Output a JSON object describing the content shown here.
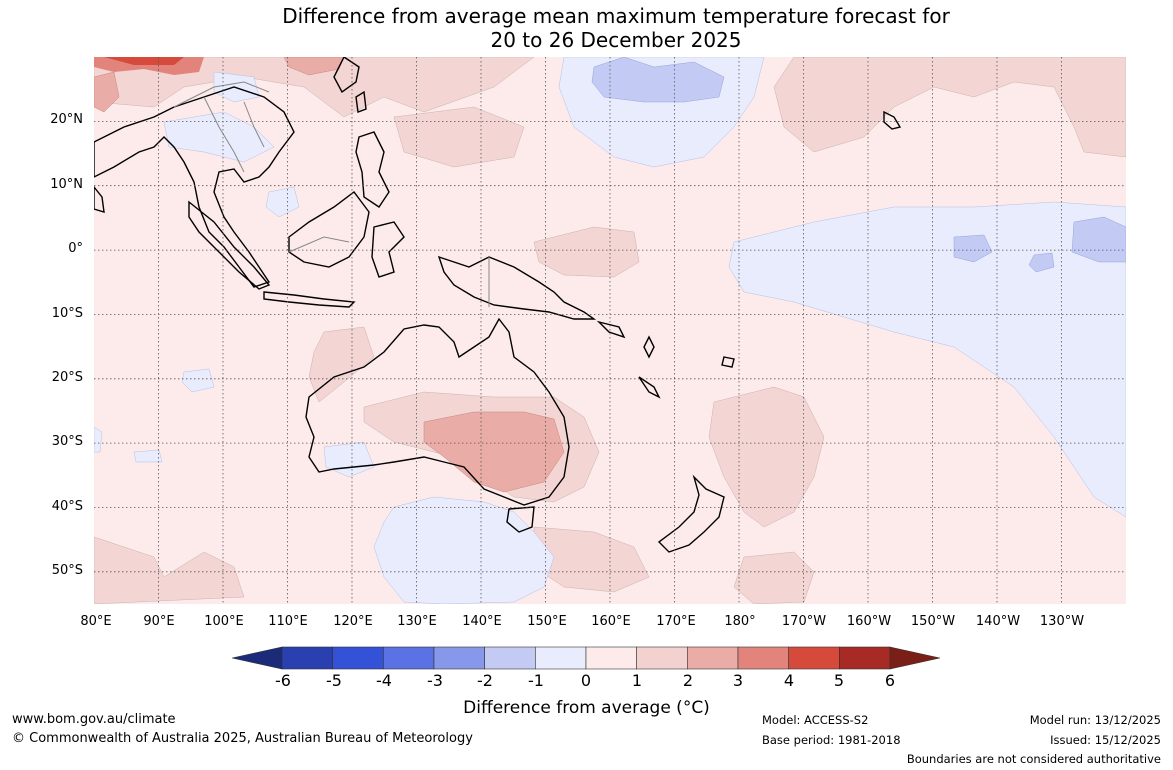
{
  "title": {
    "line1": "Difference from average mean maximum temperature forecast for",
    "line2": "20 to 26 December 2025"
  },
  "map": {
    "latitude_labels": [
      "20°N",
      "10°N",
      "0°",
      "10°S",
      "20°S",
      "30°S",
      "40°S",
      "50°S"
    ],
    "longitude_labels": [
      "80°E",
      "90°E",
      "100°E",
      "110°E",
      "120°E",
      "130°E",
      "140°E",
      "150°E",
      "160°E",
      "170°E",
      "180°",
      "170°W",
      "160°W",
      "150°W",
      "140°W",
      "130°W"
    ],
    "extent": {
      "lon_min": 80,
      "lon_max": 240,
      "lat_min": -55,
      "lat_max": 30
    }
  },
  "colorbar": {
    "ticks": [
      "-6",
      "-5",
      "-4",
      "-3",
      "-2",
      "-1",
      "0",
      "1",
      "2",
      "3",
      "4",
      "5",
      "6"
    ],
    "colors": [
      "#1b2b7a",
      "#2a3fb0",
      "#3452d8",
      "#5a72e4",
      "#8798ea",
      "#c3cbf5",
      "#e8ecfc",
      "#fcebea",
      "#f3d1cf",
      "#eaaca6",
      "#e2847b",
      "#d64a3c",
      "#a82a24",
      "#7a1e18"
    ],
    "label": "Difference from average (",
    "label_unit": "°C)"
  },
  "footer": {
    "url": "www.bom.gov.au/climate",
    "copyright": "© Commonwealth of Australia 2025, Australian Bureau of Meteorology",
    "model": "Model: ACCESS-S2",
    "base_period": "Base period: 1981-2018",
    "model_run": "Model run: 13/12/2025",
    "issued": "Issued: 15/12/2025",
    "disclaimer": "Boundaries are not considered authoritative"
  }
}
